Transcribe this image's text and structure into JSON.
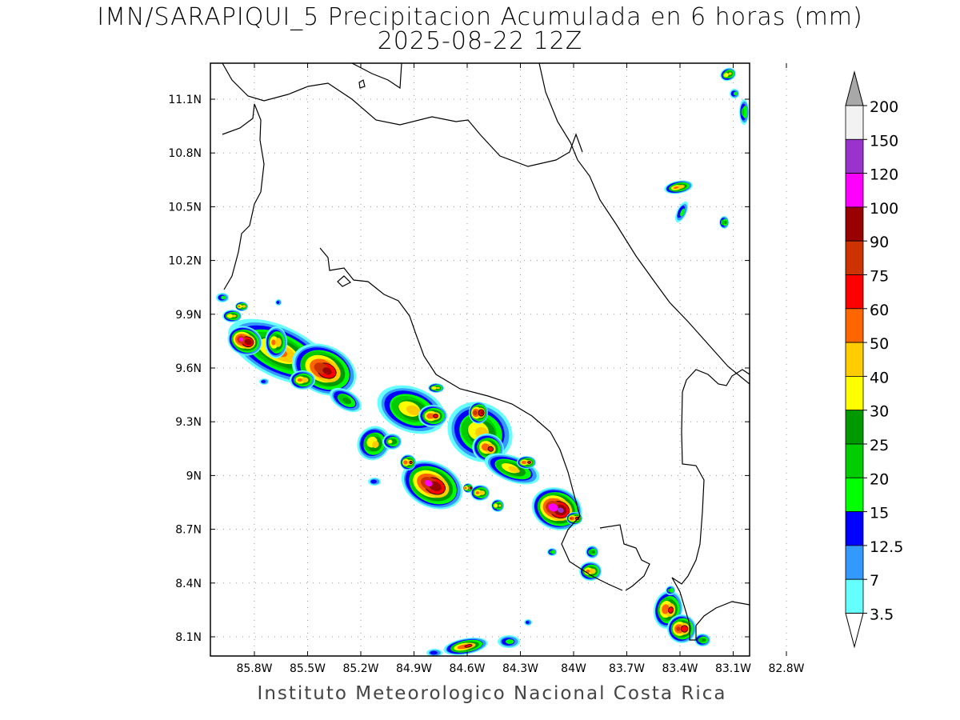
{
  "title": "IMN/SARAPIQUI_5 Precipitacion Acumulada en 6 horas (mm)",
  "subtitle": "2025-08-22 12Z",
  "footer": "Instituto Meteorologico Nacional Costa Rica",
  "lon_ticks": [
    "85.8W",
    "85.5W",
    "85.2W",
    "84.9W",
    "84.6W",
    "84.3W",
    "84W",
    "83.7W",
    "83.4W",
    "83.1W",
    "82.8W"
  ],
  "lat_ticks": [
    "11.1N",
    "10.8N",
    "10.5N",
    "10.2N",
    "9.9N",
    "9.6N",
    "9.3N",
    "9N",
    "8.7N",
    "8.4N",
    "8.1N"
  ],
  "colorbar": {
    "labels": [
      "200",
      "150",
      "120",
      "100",
      "90",
      "75",
      "60",
      "50",
      "40",
      "30",
      "25",
      "20",
      "15",
      "12.5",
      "7",
      "3.5"
    ],
    "colors": [
      "#f2f2f2",
      "#9933cc",
      "#ff00ff",
      "#990000",
      "#cc3300",
      "#ff0000",
      "#ff6600",
      "#ffcc00",
      "#ffff00",
      "#009900",
      "#00cc00",
      "#00ff00",
      "#0000ff",
      "#3399ff",
      "#66ffff"
    ],
    "top_triangle": "#a8a8a8",
    "bottom_triangle": "#ffffff"
  }
}
